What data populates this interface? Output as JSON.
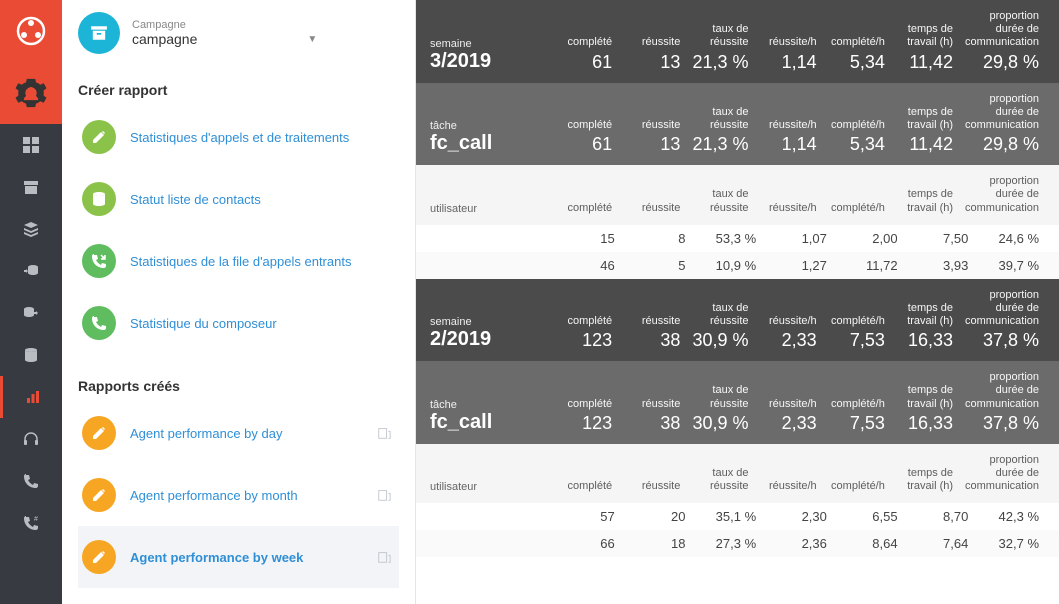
{
  "colors": {
    "brand_red": "#e94b35",
    "rail_bg": "#373b41",
    "rail_icon": "#b9bcc1",
    "cyan": "#1cb5d8",
    "link_blue": "#2f8fd6",
    "green_pencil": "#8bc34a",
    "green_db": "#8bc34a",
    "green_phone_in": "#5fbd5f",
    "green_phone": "#5fbd5f",
    "amber": "#f6a623",
    "header_dark": "#4b4b4b",
    "header_mid": "#6b6b6b"
  },
  "campaign": {
    "label": "Campagne",
    "name": "campagne"
  },
  "sections": {
    "create": {
      "heading": "Créer rapport",
      "items": [
        {
          "icon": "pencil-icon",
          "color": "#8bc34a",
          "label": "Statistiques d'appels et de traitements"
        },
        {
          "icon": "database-icon",
          "color": "#8bc34a",
          "label": "Statut liste de contacts"
        },
        {
          "icon": "phone-in-icon",
          "color": "#5fbd5f",
          "label": "Statistiques de la file d'appels entrants"
        },
        {
          "icon": "phone-icon",
          "color": "#5fbd5f",
          "label": "Statistique du composeur"
        }
      ]
    },
    "created": {
      "heading": "Rapports créés",
      "items": [
        {
          "icon": "pencil-icon",
          "color": "#f6a623",
          "label": "Agent performance by day",
          "selected": false
        },
        {
          "icon": "pencil-icon",
          "color": "#f6a623",
          "label": "Agent performance by month",
          "selected": false
        },
        {
          "icon": "pencil-icon",
          "color": "#f6a623",
          "label": "Agent performance by week",
          "selected": true
        }
      ]
    }
  },
  "table": {
    "column_headers": [
      "complété",
      "réussite",
      "taux de\nréussite",
      "réussite/h",
      "complété/h",
      "temps de\ntravail (h)",
      "proportion\ndurée de\ncommunication"
    ],
    "weeks": [
      {
        "week_label_small": "semaine",
        "week_label_big": "3/2019",
        "week_values": [
          "61",
          "13",
          "21,3 %",
          "1,14",
          "5,34",
          "11,42",
          "29,8 %"
        ],
        "task_label_small": "tâche",
        "task_label_big": "fc_call",
        "task_values": [
          "61",
          "13",
          "21,3 %",
          "1,14",
          "5,34",
          "11,42",
          "29,8 %"
        ],
        "user_label": "utilisateur",
        "users": [
          {
            "name": "",
            "values": [
              "15",
              "8",
              "53,3 %",
              "1,07",
              "2,00",
              "7,50",
              "24,6 %"
            ]
          },
          {
            "name": "",
            "values": [
              "46",
              "5",
              "10,9 %",
              "1,27",
              "11,72",
              "3,93",
              "39,7 %"
            ]
          }
        ]
      },
      {
        "week_label_small": "semaine",
        "week_label_big": "2/2019",
        "week_values": [
          "123",
          "38",
          "30,9 %",
          "2,33",
          "7,53",
          "16,33",
          "37,8 %"
        ],
        "task_label_small": "tâche",
        "task_label_big": "fc_call",
        "task_values": [
          "123",
          "38",
          "30,9 %",
          "2,33",
          "7,53",
          "16,33",
          "37,8 %"
        ],
        "user_label": "utilisateur",
        "users": [
          {
            "name": "",
            "values": [
              "57",
              "20",
              "35,1 %",
              "2,30",
              "6,55",
              "8,70",
              "42,3 %"
            ]
          },
          {
            "name": "",
            "values": [
              "66",
              "18",
              "27,3 %",
              "2,36",
              "8,64",
              "7,64",
              "32,7 %"
            ]
          }
        ]
      }
    ]
  }
}
